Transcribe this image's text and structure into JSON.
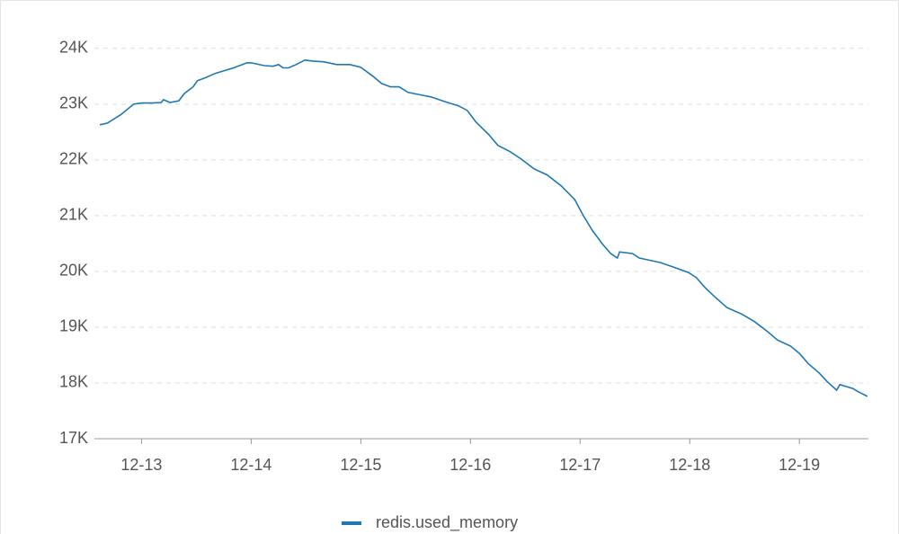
{
  "chart_data": {
    "type": "line",
    "x": [
      12.62,
      12.69,
      12.81,
      12.93,
      13.0,
      13.1,
      13.18,
      13.2,
      13.26,
      13.34,
      13.39,
      13.47,
      13.51,
      13.59,
      13.67,
      13.84,
      13.96,
      14.0,
      14.12,
      14.2,
      14.25,
      14.29,
      14.34,
      14.41,
      14.49,
      14.57,
      14.66,
      14.78,
      14.9,
      15.0,
      15.11,
      15.19,
      15.27,
      15.35,
      15.43,
      15.56,
      15.64,
      15.76,
      15.89,
      15.97,
      16.05,
      16.17,
      16.25,
      16.36,
      16.46,
      16.58,
      16.7,
      16.83,
      16.95,
      17.03,
      17.11,
      17.2,
      17.28,
      17.34,
      17.36,
      17.48,
      17.54,
      17.61,
      17.73,
      17.85,
      17.99,
      18.06,
      18.14,
      18.22,
      18.34,
      18.47,
      18.59,
      18.71,
      18.8,
      18.92,
      19.0,
      19.08,
      19.18,
      19.25,
      19.34,
      19.37,
      19.49,
      19.53,
      19.62
    ],
    "series": [
      {
        "name": "redis.used_memory",
        "color": "#1f77b4",
        "values": [
          22630,
          22660,
          22810,
          23000,
          23020,
          23020,
          23030,
          23080,
          23030,
          23060,
          23190,
          23310,
          23420,
          23480,
          23550,
          23650,
          23740,
          23740,
          23690,
          23680,
          23710,
          23650,
          23650,
          23710,
          23790,
          23770,
          23760,
          23710,
          23710,
          23660,
          23500,
          23370,
          23310,
          23310,
          23210,
          23160,
          23130,
          23050,
          22970,
          22890,
          22680,
          22450,
          22260,
          22150,
          22020,
          21840,
          21730,
          21530,
          21290,
          21000,
          20740,
          20500,
          20320,
          20240,
          20350,
          20320,
          20240,
          20210,
          20160,
          20080,
          19980,
          19890,
          19710,
          19560,
          19350,
          19240,
          19100,
          18920,
          18770,
          18660,
          18530,
          18350,
          18180,
          18030,
          17870,
          17970,
          17900,
          17850,
          17760
        ]
      }
    ],
    "xlim": [
      12.57,
      19.63
    ],
    "xticks": [
      {
        "value": 13,
        "label": "12-13"
      },
      {
        "value": 14,
        "label": "12-14"
      },
      {
        "value": 15,
        "label": "12-15"
      },
      {
        "value": 16,
        "label": "12-16"
      },
      {
        "value": 17,
        "label": "12-17"
      },
      {
        "value": 18,
        "label": "12-18"
      },
      {
        "value": 19,
        "label": "12-19"
      }
    ],
    "ylim": [
      17000,
      24400
    ],
    "yticks": [
      {
        "value": 17000,
        "label": "17K"
      },
      {
        "value": 18000,
        "label": "18K"
      },
      {
        "value": 19000,
        "label": "19K"
      },
      {
        "value": 20000,
        "label": "20K"
      },
      {
        "value": 21000,
        "label": "21K"
      },
      {
        "value": 22000,
        "label": "22K"
      },
      {
        "value": 23000,
        "label": "23K"
      },
      {
        "value": 24000,
        "label": "24K"
      }
    ],
    "grid": true,
    "legend": "bottom"
  }
}
